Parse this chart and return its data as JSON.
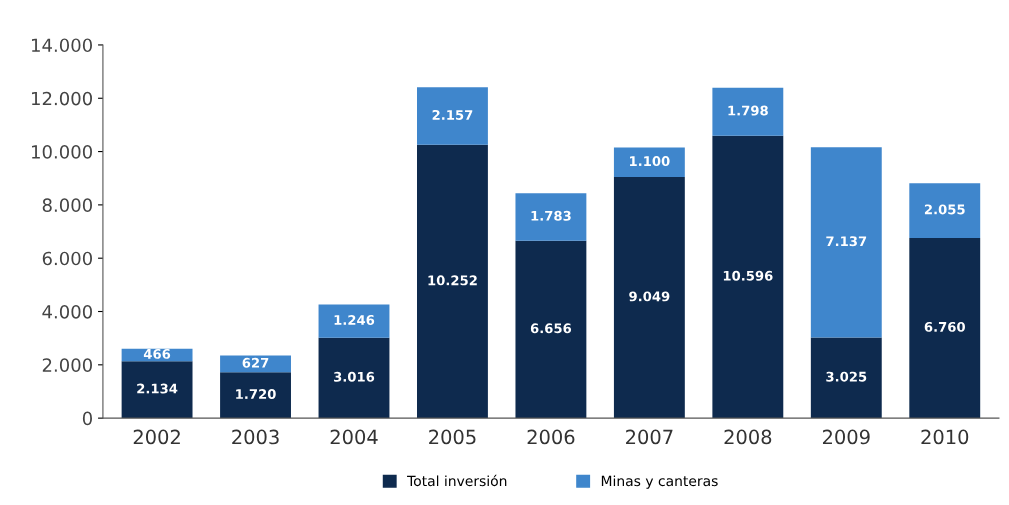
{
  "chart_data": {
    "type": "bar",
    "stacked": true,
    "categories": [
      "2002",
      "2003",
      "2004",
      "2005",
      "2006",
      "2007",
      "2008",
      "2009",
      "2010"
    ],
    "series": [
      {
        "name": "Total inversión",
        "color": "#0e2a4e",
        "values": [
          2134,
          1720,
          3016,
          10252,
          6656,
          9049,
          10596,
          3025,
          6760
        ],
        "value_labels": [
          "2.134",
          "1.720",
          "3.016",
          "10.252",
          "6.656",
          "9.049",
          "10.596",
          "3.025",
          "6.760"
        ]
      },
      {
        "name": "Minas y canteras",
        "color": "#3f86cc",
        "values": [
          466,
          627,
          1246,
          2157,
          1783,
          1100,
          1798,
          7137,
          2055
        ],
        "value_labels": [
          "466",
          "627",
          "1.246",
          "2.157",
          "1.783",
          "1.100",
          "1.798",
          "7.137",
          "2.055"
        ]
      }
    ],
    "ylim": [
      0,
      14000
    ],
    "yticks": [
      {
        "value": 0,
        "label": "0"
      },
      {
        "value": 2000,
        "label": "2.000"
      },
      {
        "value": 4000,
        "label": "4.000"
      },
      {
        "value": 6000,
        "label": "6.000"
      },
      {
        "value": 8000,
        "label": "8.000"
      },
      {
        "value": 10000,
        "label": "10.000"
      },
      {
        "value": 12000,
        "label": "12.000"
      },
      {
        "value": 14000,
        "label": "14.000"
      }
    ],
    "legend": "bottom",
    "grid": false
  }
}
